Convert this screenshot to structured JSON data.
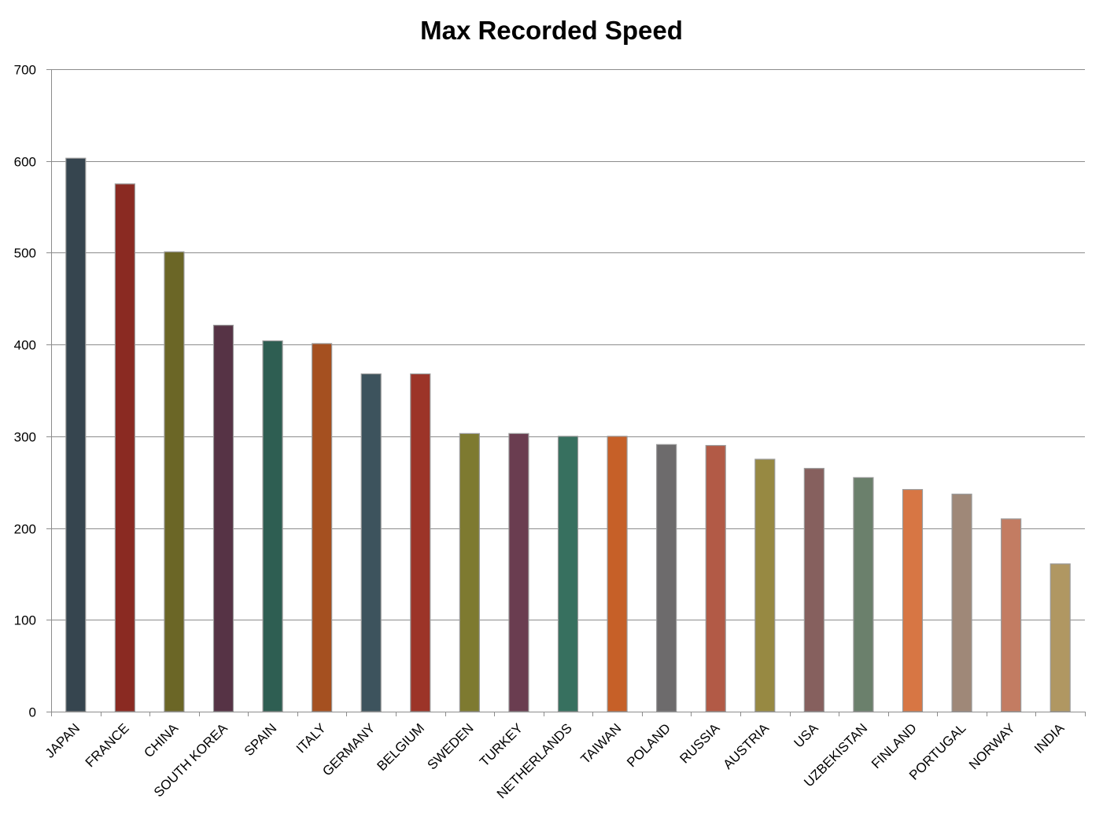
{
  "chart_data": {
    "type": "bar",
    "title": "Max Recorded Speed",
    "xlabel": "",
    "ylabel": "",
    "ylim": [
      0,
      700
    ],
    "yticks": [
      0,
      100,
      200,
      300,
      400,
      500,
      600,
      700
    ],
    "grid": true,
    "legend": "none",
    "categories": [
      "JAPAN",
      "FRANCE",
      "CHINA",
      "SOUTH KOREA",
      "SPAIN",
      "ITALY",
      "GERMANY",
      "BELGIUM",
      "SWEDEN",
      "TURKEY",
      "NETHERLANDS",
      "TAIWAN",
      "POLAND",
      "RUSSIA",
      "AUSTRIA",
      "USA",
      "UZBEKISTAN",
      "FINLAND",
      "PORTUGAL",
      "NORWAY",
      "INDIA"
    ],
    "values": [
      603,
      575,
      501,
      421,
      404,
      401,
      368,
      368,
      303,
      303,
      300,
      300,
      291,
      290,
      275,
      265,
      255,
      242,
      237,
      210,
      161
    ],
    "colors": [
      "#36454f",
      "#8a2a22",
      "#6b6626",
      "#563345",
      "#2e5e52",
      "#a55020",
      "#3d535d",
      "#9c3428",
      "#7e7a30",
      "#6a3d50",
      "#37705f",
      "#c66028",
      "#6d6b6c",
      "#b25a46",
      "#978942",
      "#86605e",
      "#6b806c",
      "#d77644",
      "#9f8878",
      "#c37c62",
      "#b09762"
    ]
  }
}
